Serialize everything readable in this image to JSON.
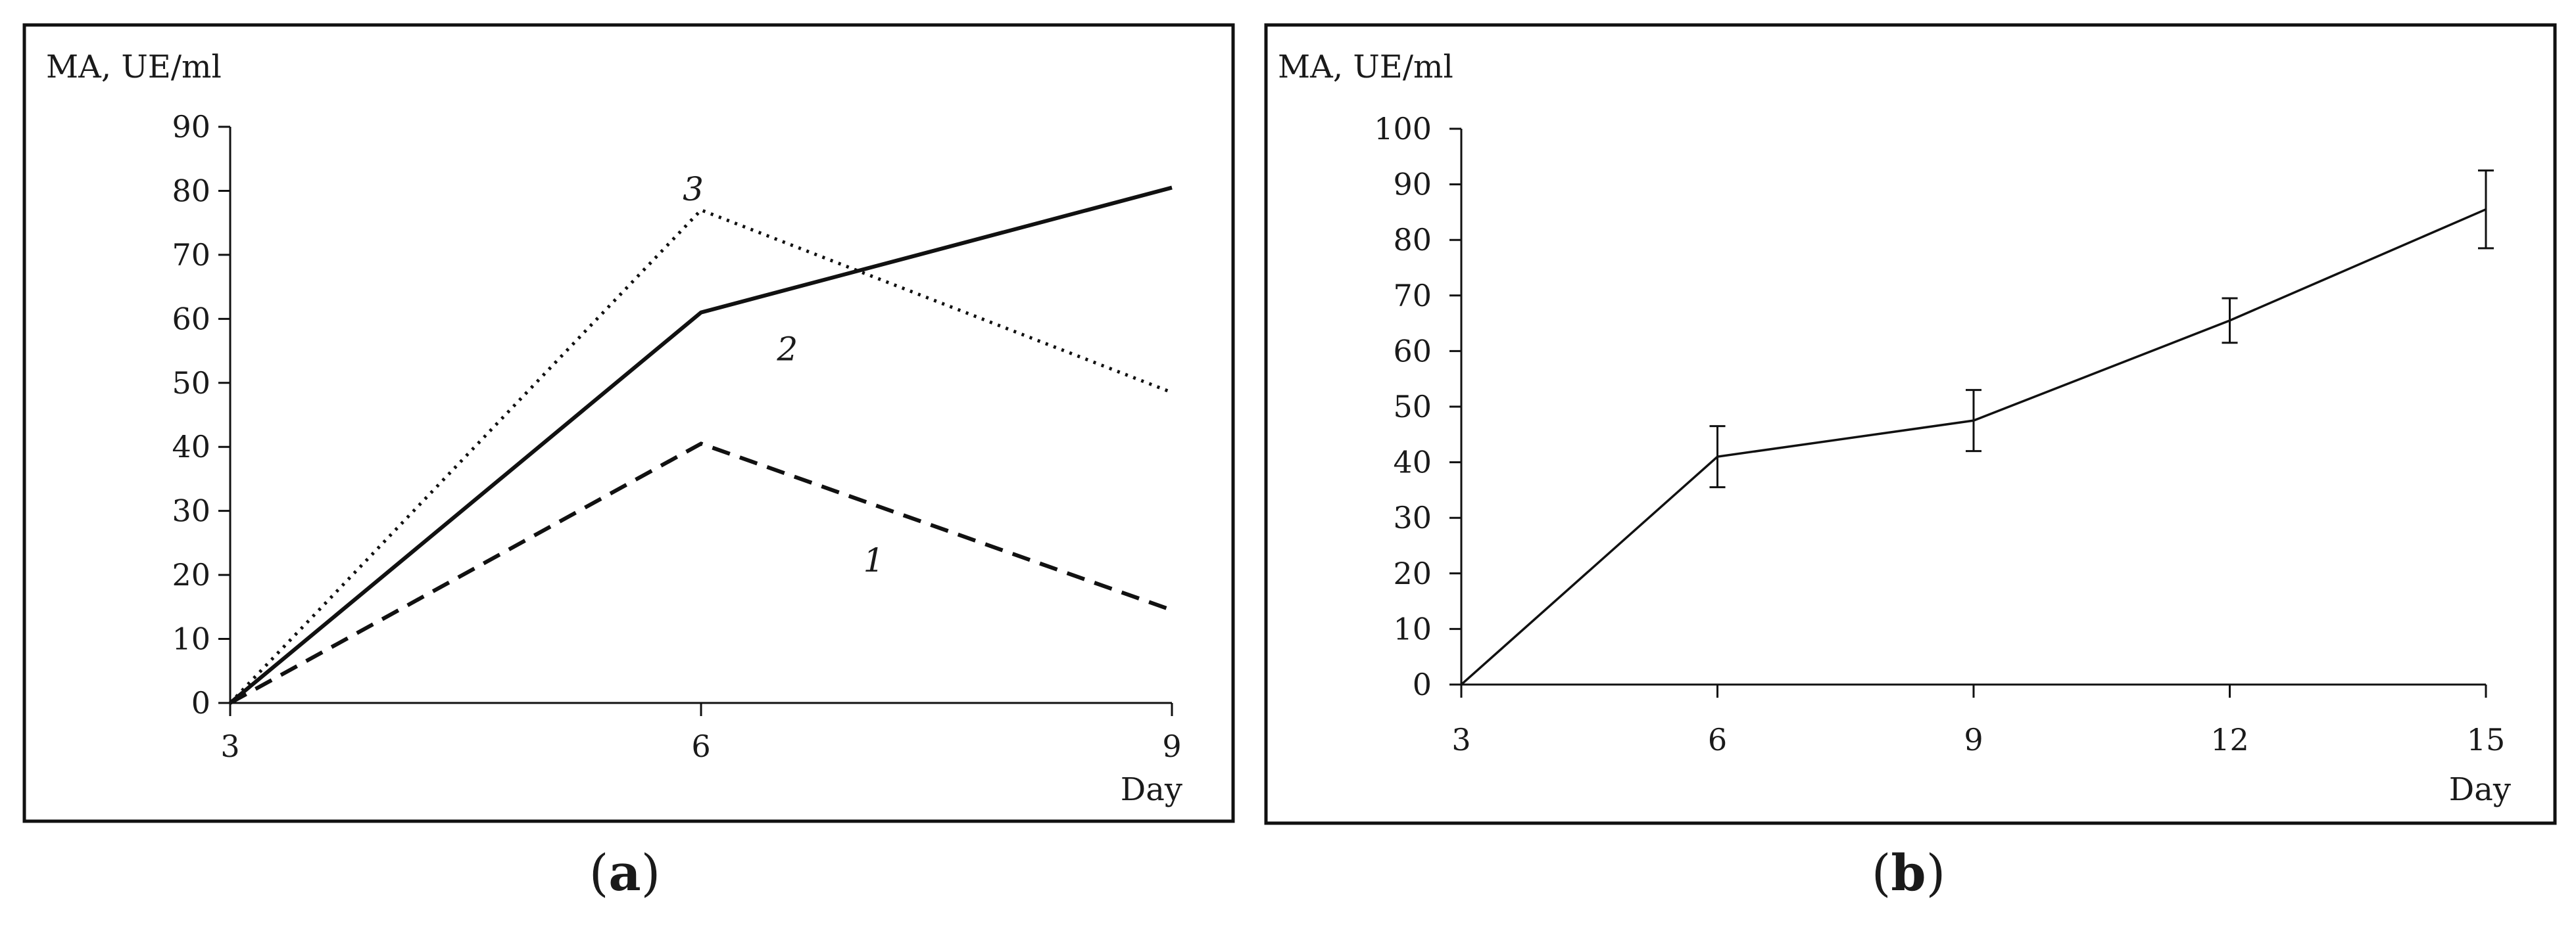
{
  "chart_data": [
    {
      "type": "line",
      "panel_label": "a",
      "ylabel": "MA,  UE/ml",
      "xlabel": "Day",
      "x": [
        3,
        6,
        9
      ],
      "xticks": [
        3,
        6,
        9
      ],
      "xlim": [
        3,
        9
      ],
      "ylim": [
        0,
        90
      ],
      "yticks": [
        0,
        10,
        20,
        30,
        40,
        50,
        60,
        70,
        80,
        90
      ],
      "grid": false,
      "series": [
        {
          "name": "1",
          "values": [
            0,
            40.5,
            14.5
          ],
          "style": "dashed",
          "label_at": [
            7.1,
            20.5
          ]
        },
        {
          "name": "2",
          "values": [
            0,
            77,
            48.5
          ],
          "style": "dotted",
          "label_at": [
            6.55,
            53.5
          ]
        },
        {
          "name": "3",
          "values": [
            0,
            61,
            80.5
          ],
          "style": "solid",
          "label_at": [
            5.95,
            78.5
          ]
        }
      ],
      "colors": {
        "line": "#111111"
      }
    },
    {
      "type": "line",
      "panel_label": "b",
      "ylabel": "MA, UE/ml",
      "xlabel": "Day",
      "x": [
        3,
        6,
        9,
        12,
        15
      ],
      "xticks": [
        3,
        6,
        9,
        12,
        15
      ],
      "xlim": [
        3,
        15
      ],
      "ylim": [
        0,
        100
      ],
      "yticks": [
        0,
        10,
        20,
        30,
        40,
        50,
        60,
        70,
        80,
        90,
        100
      ],
      "grid": false,
      "series": [
        {
          "values": [
            0,
            41,
            47.5,
            65.5,
            85.5
          ],
          "error": [
            0,
            5.5,
            5.5,
            4,
            7
          ],
          "style": "solid"
        }
      ],
      "colors": {
        "line": "#111111"
      }
    }
  ]
}
